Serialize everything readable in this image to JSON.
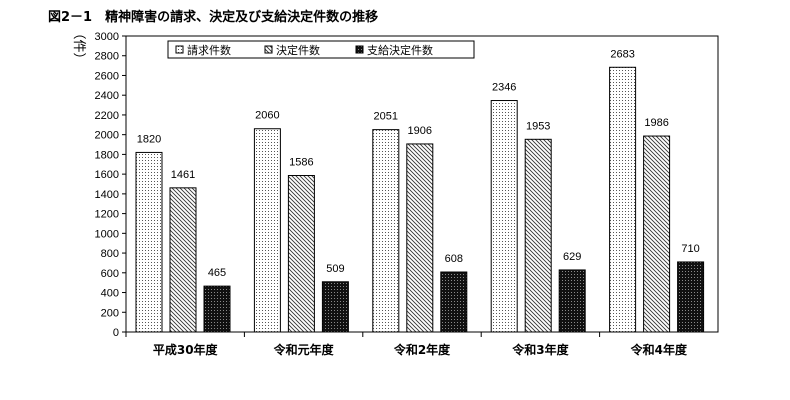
{
  "figure": {
    "title": "図2－1　精神障害の請求、決定及び支給決定件数の推移"
  },
  "chart_data": {
    "type": "bar",
    "title": "図2－1　精神障害の請求、決定及び支給決定件数の推移",
    "ylabel": "（件）",
    "xlabel": "",
    "categories": [
      "平成30年度",
      "令和元年度",
      "令和2年度",
      "令和3年度",
      "令和4年度"
    ],
    "ylim": [
      0,
      3000
    ],
    "ytick_step": 200,
    "grid": false,
    "legend_position": "top-left",
    "series": [
      {
        "name": "請求件数",
        "values": [
          1820,
          2060,
          2051,
          2346,
          2683
        ],
        "pattern": "fine-dots",
        "color": "#ffffff"
      },
      {
        "name": "決定件数",
        "values": [
          1461,
          1586,
          1906,
          1953,
          1986
        ],
        "pattern": "diagonal-hatch",
        "color": "#ffffff"
      },
      {
        "name": "支給決定件数",
        "values": [
          465,
          509,
          608,
          629,
          710
        ],
        "pattern": "dark-dots",
        "color": "#111111"
      }
    ]
  }
}
